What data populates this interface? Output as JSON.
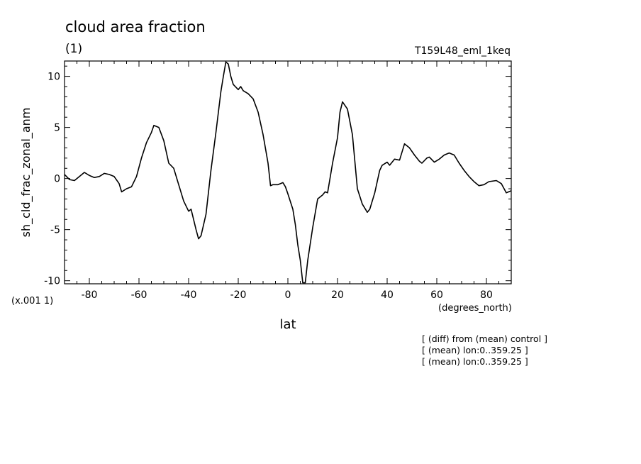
{
  "chart_data": {
    "type": "line",
    "title": "cloud area fraction",
    "units": "(1)",
    "run_label": "T159L48_eml_1keq",
    "ylabel": "sh_cld_frac_zonal_anm",
    "xlabel": "lat",
    "x_units": "(degrees_north)",
    "y_scale_note": "(x.001 1)",
    "notes": [
      "[ (diff) from (mean) control ]",
      "[ (mean) lon:0..359.25 ]",
      "[ (mean) lon:0..359.25 ]"
    ],
    "xlim": [
      -90,
      90
    ],
    "ylim": [
      -10.3,
      11.5
    ],
    "x_ticks": [
      -80,
      -60,
      -40,
      -20,
      0,
      20,
      40,
      60,
      80
    ],
    "y_ticks": [
      -10,
      -5,
      0,
      5,
      10
    ],
    "grid": false,
    "series": [
      {
        "color": "#000000",
        "points": [
          [
            -90,
            0.4
          ],
          [
            -88,
            -0.1
          ],
          [
            -86,
            -0.2
          ],
          [
            -84,
            0.2
          ],
          [
            -82,
            0.6
          ],
          [
            -80,
            0.3
          ],
          [
            -78,
            0.1
          ],
          [
            -76,
            0.2
          ],
          [
            -74,
            0.5
          ],
          [
            -72,
            0.4
          ],
          [
            -70,
            0.2
          ],
          [
            -68,
            -0.5
          ],
          [
            -67,
            -1.3
          ],
          [
            -65,
            -1.0
          ],
          [
            -63,
            -0.8
          ],
          [
            -61,
            0.2
          ],
          [
            -59,
            2.0
          ],
          [
            -57,
            3.5
          ],
          [
            -55,
            4.5
          ],
          [
            -54,
            5.2
          ],
          [
            -52,
            5.0
          ],
          [
            -50,
            3.7
          ],
          [
            -48,
            1.5
          ],
          [
            -46,
            1.0
          ],
          [
            -44,
            -0.6
          ],
          [
            -42,
            -2.2
          ],
          [
            -40,
            -3.2
          ],
          [
            -39,
            -3.0
          ],
          [
            -37,
            -5.0
          ],
          [
            -36,
            -5.9
          ],
          [
            -35,
            -5.6
          ],
          [
            -33,
            -3.5
          ],
          [
            -31,
            0.8
          ],
          [
            -29,
            4.5
          ],
          [
            -27,
            8.5
          ],
          [
            -26,
            10.0
          ],
          [
            -25,
            11.4
          ],
          [
            -24,
            11.2
          ],
          [
            -23,
            10.0
          ],
          [
            -22,
            9.2
          ],
          [
            -20,
            8.7
          ],
          [
            -19,
            9.0
          ],
          [
            -18,
            8.6
          ],
          [
            -16,
            8.3
          ],
          [
            -14,
            7.8
          ],
          [
            -12,
            6.5
          ],
          [
            -10,
            4.3
          ],
          [
            -8,
            1.5
          ],
          [
            -7,
            -0.7
          ],
          [
            -6,
            -0.6
          ],
          [
            -4,
            -0.6
          ],
          [
            -2,
            -0.4
          ],
          [
            -1,
            -0.8
          ],
          [
            0,
            -1.5
          ],
          [
            2,
            -3.0
          ],
          [
            3,
            -4.5
          ],
          [
            4,
            -6.5
          ],
          [
            5,
            -8.0
          ],
          [
            6,
            -10.2
          ],
          [
            7,
            -10.2
          ],
          [
            8,
            -8.0
          ],
          [
            10,
            -4.8
          ],
          [
            12,
            -2.0
          ],
          [
            14,
            -1.6
          ],
          [
            15,
            -1.3
          ],
          [
            16,
            -1.4
          ],
          [
            18,
            1.5
          ],
          [
            20,
            4.0
          ],
          [
            21,
            6.5
          ],
          [
            22,
            7.5
          ],
          [
            24,
            6.8
          ],
          [
            26,
            4.3
          ],
          [
            28,
            -1.0
          ],
          [
            30,
            -2.5
          ],
          [
            32,
            -3.3
          ],
          [
            33,
            -3.0
          ],
          [
            35,
            -1.4
          ],
          [
            37,
            0.8
          ],
          [
            38,
            1.3
          ],
          [
            40,
            1.6
          ],
          [
            41,
            1.3
          ],
          [
            43,
            1.9
          ],
          [
            45,
            1.8
          ],
          [
            46,
            2.6
          ],
          [
            47,
            3.4
          ],
          [
            49,
            3.0
          ],
          [
            51,
            2.3
          ],
          [
            53,
            1.7
          ],
          [
            54,
            1.5
          ],
          [
            56,
            2.0
          ],
          [
            57,
            2.1
          ],
          [
            59,
            1.6
          ],
          [
            61,
            1.9
          ],
          [
            63,
            2.3
          ],
          [
            65,
            2.5
          ],
          [
            67,
            2.3
          ],
          [
            69,
            1.5
          ],
          [
            71,
            0.8
          ],
          [
            73,
            0.2
          ],
          [
            75,
            -0.3
          ],
          [
            77,
            -0.7
          ],
          [
            79,
            -0.6
          ],
          [
            81,
            -0.3
          ],
          [
            84,
            -0.2
          ],
          [
            86,
            -0.5
          ],
          [
            88,
            -1.4
          ],
          [
            90,
            -1.2
          ]
        ]
      }
    ]
  }
}
